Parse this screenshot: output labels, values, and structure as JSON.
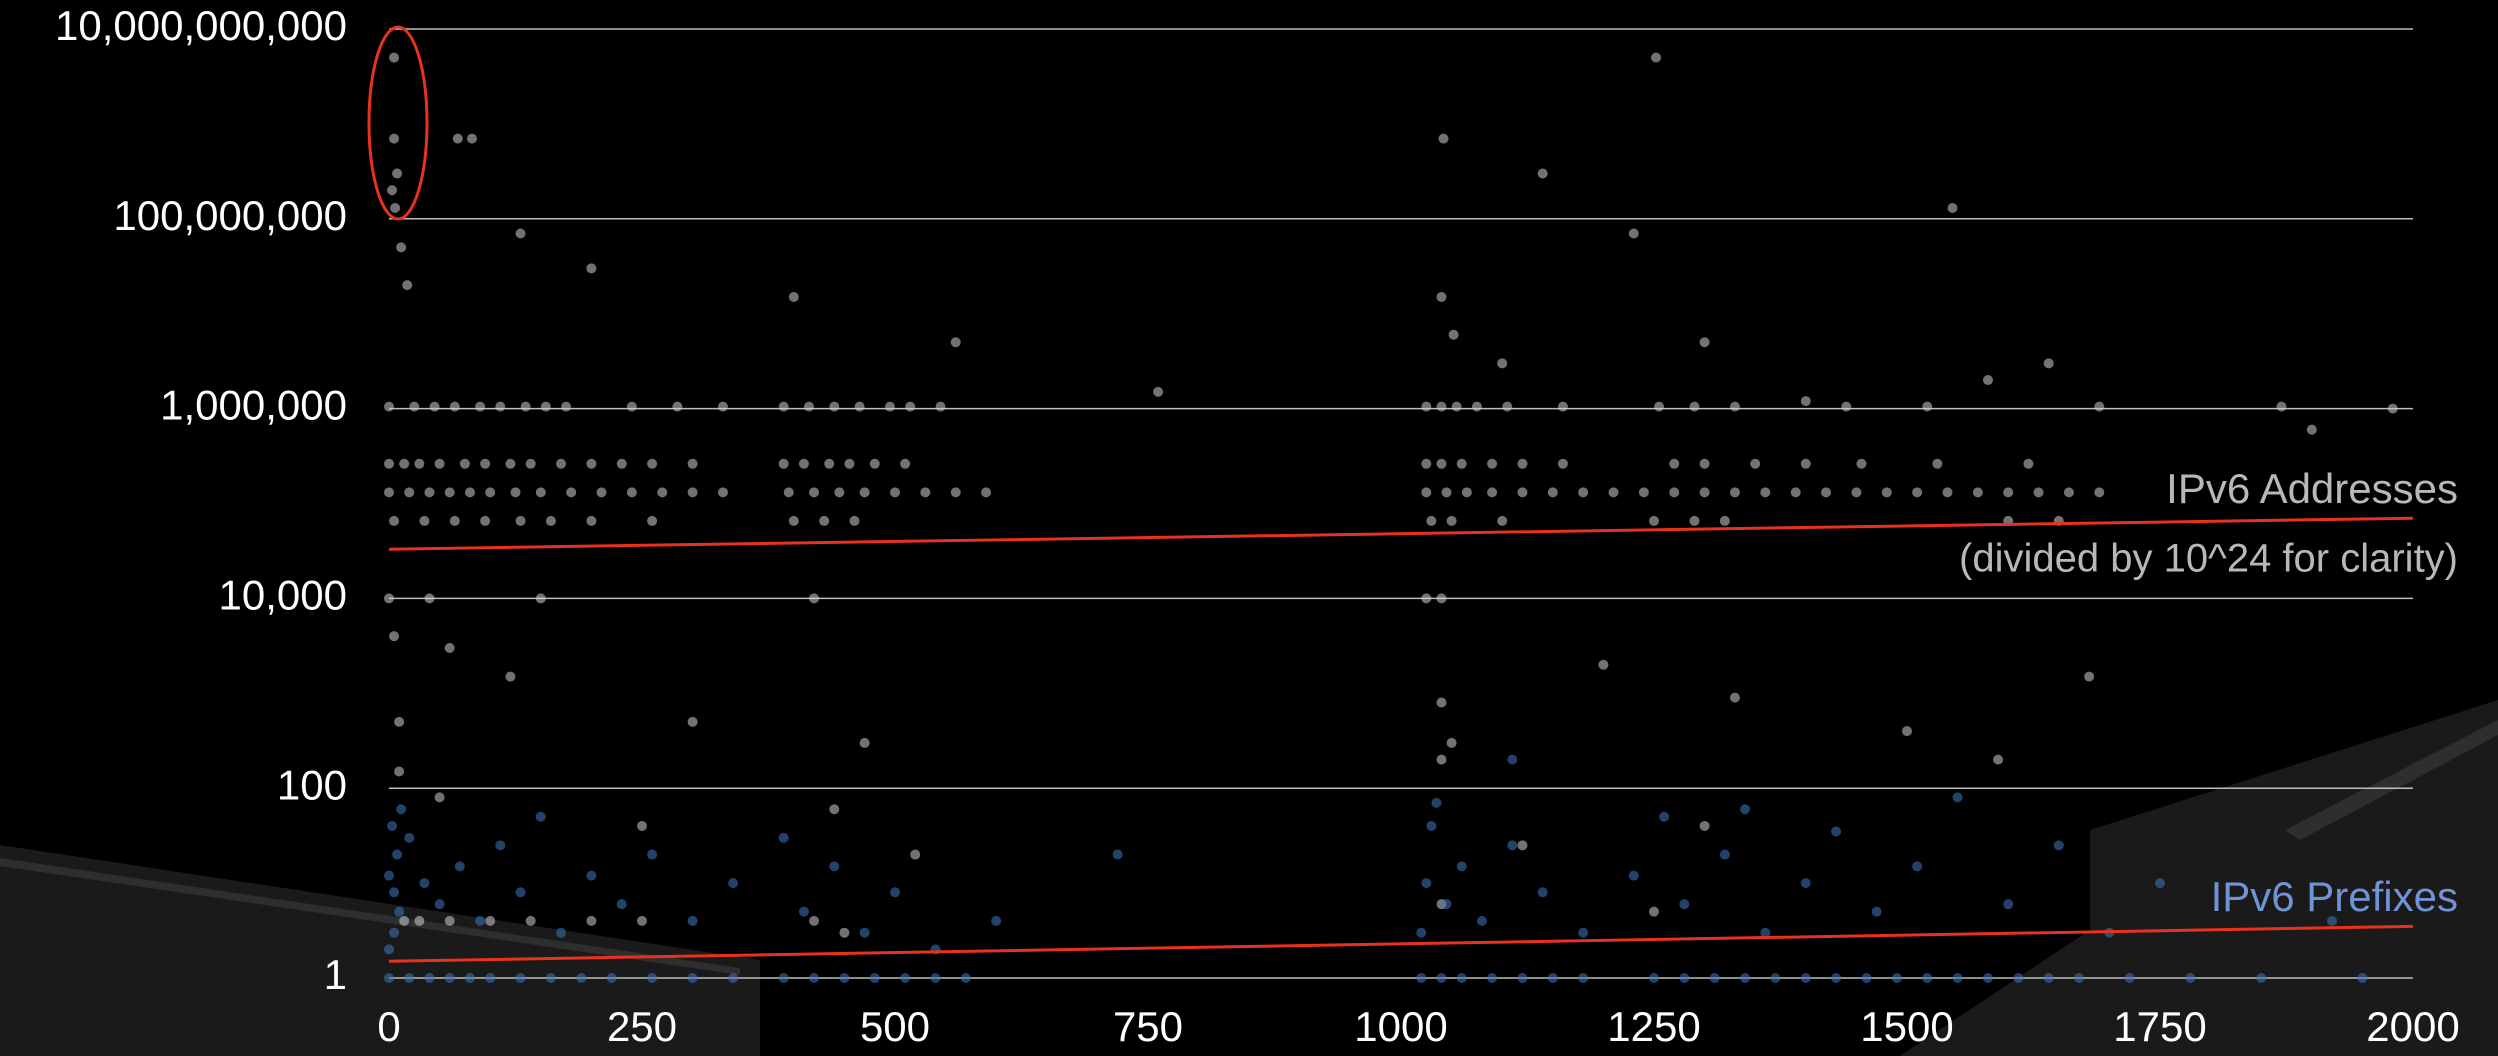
{
  "chart_data": {
    "type": "scatter",
    "xlim": [
      0,
      2000
    ],
    "xticks": [
      0,
      250,
      500,
      750,
      1000,
      1250,
      1500,
      1750,
      2000
    ],
    "ylim": [
      1,
      10000000000
    ],
    "log_y": true,
    "grid": true,
    "yticks": [
      1,
      100,
      {
        "value": 10000,
        "label": "10,000"
      },
      {
        "value": 1000000,
        "label": "1,000,000"
      },
      {
        "value": 100000000,
        "label": "100,000,000"
      },
      {
        "value": 10000000000,
        "label": "10,000,000,000"
      }
    ],
    "series": [
      {
        "name": "IPv6 Addresses",
        "color": "#d0d0d0",
        "x": [
          5,
          5,
          8,
          3,
          6,
          68,
          82,
          1042,
          1140,
          1252,
          1545,
          1230,
          130,
          200,
          12,
          18,
          400,
          560,
          1040,
          1052,
          1300,
          1100,
          1400,
          1640,
          760,
          1980,
          1900,
          1580,
          0,
          25,
          45,
          65,
          90,
          110,
          135,
          155,
          175,
          240,
          285,
          330,
          390,
          415,
          440,
          465,
          495,
          515,
          545,
          1025,
          1040,
          1055,
          1075,
          1105,
          1160,
          1255,
          1290,
          1330,
          1440,
          1520,
          1690,
          1870,
          0,
          15,
          30,
          50,
          75,
          95,
          120,
          140,
          170,
          200,
          230,
          260,
          300,
          390,
          410,
          435,
          455,
          480,
          510,
          1025,
          1040,
          1060,
          1090,
          1120,
          1160,
          1270,
          1300,
          1350,
          1400,
          1455,
          1530,
          1620,
          0,
          20,
          40,
          60,
          80,
          100,
          125,
          150,
          180,
          210,
          240,
          270,
          300,
          330,
          395,
          420,
          445,
          470,
          500,
          530,
          560,
          590,
          1025,
          1045,
          1065,
          1090,
          1120,
          1150,
          1180,
          1210,
          1240,
          1270,
          1300,
          1330,
          1360,
          1390,
          1420,
          1450,
          1480,
          1510,
          1540,
          1570,
          1600,
          1630,
          1660,
          1690,
          5,
          35,
          65,
          95,
          130,
          160,
          200,
          260,
          400,
          430,
          460,
          1030,
          1050,
          1100,
          1250,
          1290,
          1320,
          1600,
          1650,
          0,
          40,
          150,
          420,
          1025,
          1040,
          5,
          60,
          120,
          300,
          470,
          1040,
          1050,
          1200,
          1330,
          1500,
          1680,
          10,
          10,
          50,
          250,
          440,
          520,
          1040,
          1300,
          1590,
          1120,
          15,
          30,
          60,
          100,
          140,
          200,
          250,
          420,
          450,
          1250,
          1040
        ],
        "y": [
          5000000000,
          700000000,
          300000000,
          200000000,
          130000000,
          700000000,
          700000000,
          700000000,
          300000000,
          5000000000,
          130000000,
          70000000,
          70000000,
          30000000,
          50000000,
          20000000,
          15000000,
          5000000,
          15000000,
          6000000,
          5000000,
          3000000,
          1200000,
          3000000,
          1500000,
          1000000,
          600000,
          2000000,
          1048576,
          1048576,
          1048576,
          1048576,
          1048576,
          1048576,
          1048576,
          1048576,
          1048576,
          1048576,
          1048576,
          1048576,
          1048576,
          1048576,
          1048576,
          1048576,
          1048576,
          1048576,
          1048576,
          1048576,
          1048576,
          1048576,
          1048576,
          1048576,
          1048576,
          1048576,
          1048576,
          1048576,
          1048576,
          1048576,
          1048576,
          1048576,
          262144,
          262144,
          262144,
          262144,
          262144,
          262144,
          262144,
          262144,
          262144,
          262144,
          262144,
          262144,
          262144,
          262144,
          262144,
          262144,
          262144,
          262144,
          262144,
          262144,
          262144,
          262144,
          262144,
          262144,
          262144,
          262144,
          262144,
          262144,
          262144,
          262144,
          262144,
          262144,
          131072,
          131072,
          131072,
          131072,
          131072,
          131072,
          131072,
          131072,
          131072,
          131072,
          131072,
          131072,
          131072,
          131072,
          131072,
          131072,
          131072,
          131072,
          131072,
          131072,
          131072,
          131072,
          131072,
          131072,
          131072,
          131072,
          131072,
          131072,
          131072,
          131072,
          131072,
          131072,
          131072,
          131072,
          131072,
          131072,
          131072,
          131072,
          131072,
          131072,
          131072,
          131072,
          131072,
          131072,
          131072,
          131072,
          65536,
          65536,
          65536,
          65536,
          65536,
          65536,
          65536,
          65536,
          65536,
          65536,
          65536,
          65536,
          65536,
          65536,
          65536,
          65536,
          65536,
          65536,
          65536,
          10000,
          10000,
          10000,
          10000,
          10000,
          10000,
          4000,
          3000,
          1500,
          500,
          300,
          800,
          300,
          2000,
          900,
          400,
          1500,
          500,
          150,
          80,
          40,
          60,
          20,
          200,
          40,
          200,
          25,
          4,
          4,
          4,
          4,
          4,
          4,
          4,
          4,
          3,
          5,
          6
        ]
      },
      {
        "name": "IPv6 Prefixes",
        "color": "#3f78c0",
        "x": [
          0,
          20,
          40,
          60,
          80,
          100,
          130,
          160,
          190,
          220,
          260,
          300,
          340,
          390,
          420,
          450,
          480,
          510,
          540,
          570,
          1020,
          1040,
          1060,
          1090,
          1120,
          1150,
          1180,
          1250,
          1280,
          1310,
          1340,
          1370,
          1400,
          1430,
          1460,
          1490,
          1520,
          1550,
          1580,
          1610,
          1640,
          1670,
          1720,
          1780,
          1850,
          1950,
          0,
          5,
          10,
          5,
          0,
          8,
          3,
          12,
          20,
          35,
          50,
          70,
          90,
          110,
          130,
          150,
          170,
          200,
          230,
          260,
          300,
          340,
          390,
          410,
          440,
          470,
          500,
          540,
          600,
          720,
          1020,
          1025,
          1030,
          1035,
          1045,
          1060,
          1080,
          1110,
          1140,
          1180,
          1230,
          1260,
          1280,
          1320,
          1360,
          1400,
          1430,
          1470,
          1510,
          1550,
          1600,
          1650,
          1700,
          1750,
          1920,
          1110,
          1340
        ],
        "y": [
          1,
          1,
          1,
          1,
          1,
          1,
          1,
          1,
          1,
          1,
          1,
          1,
          1,
          1,
          1,
          1,
          1,
          1,
          1,
          1,
          1,
          1,
          1,
          1,
          1,
          1,
          1,
          1,
          1,
          1,
          1,
          1,
          1,
          1,
          1,
          1,
          1,
          1,
          1,
          1,
          1,
          1,
          1,
          1,
          1,
          1,
          2,
          3,
          5,
          8,
          12,
          20,
          40,
          60,
          30,
          10,
          6,
          15,
          4,
          25,
          8,
          50,
          3,
          12,
          6,
          20,
          4,
          10,
          30,
          5,
          15,
          3,
          8,
          2,
          4,
          20,
          3,
          10,
          40,
          70,
          6,
          15,
          4,
          25,
          8,
          3,
          12,
          50,
          6,
          20,
          3,
          10,
          35,
          5,
          15,
          80,
          6,
          25,
          3,
          10,
          4,
          200,
          60
        ]
      }
    ],
    "trendlines": [
      {
        "color": "#e8321e",
        "x": [
          0,
          2000
        ],
        "y": [
          33000,
          70000
        ]
      },
      {
        "color": "#e8321e",
        "x": [
          0,
          2000
        ],
        "y": [
          1.5,
          3.5
        ]
      }
    ],
    "annotations": [
      "(divided by 10^24 for clarity)"
    ]
  }
}
